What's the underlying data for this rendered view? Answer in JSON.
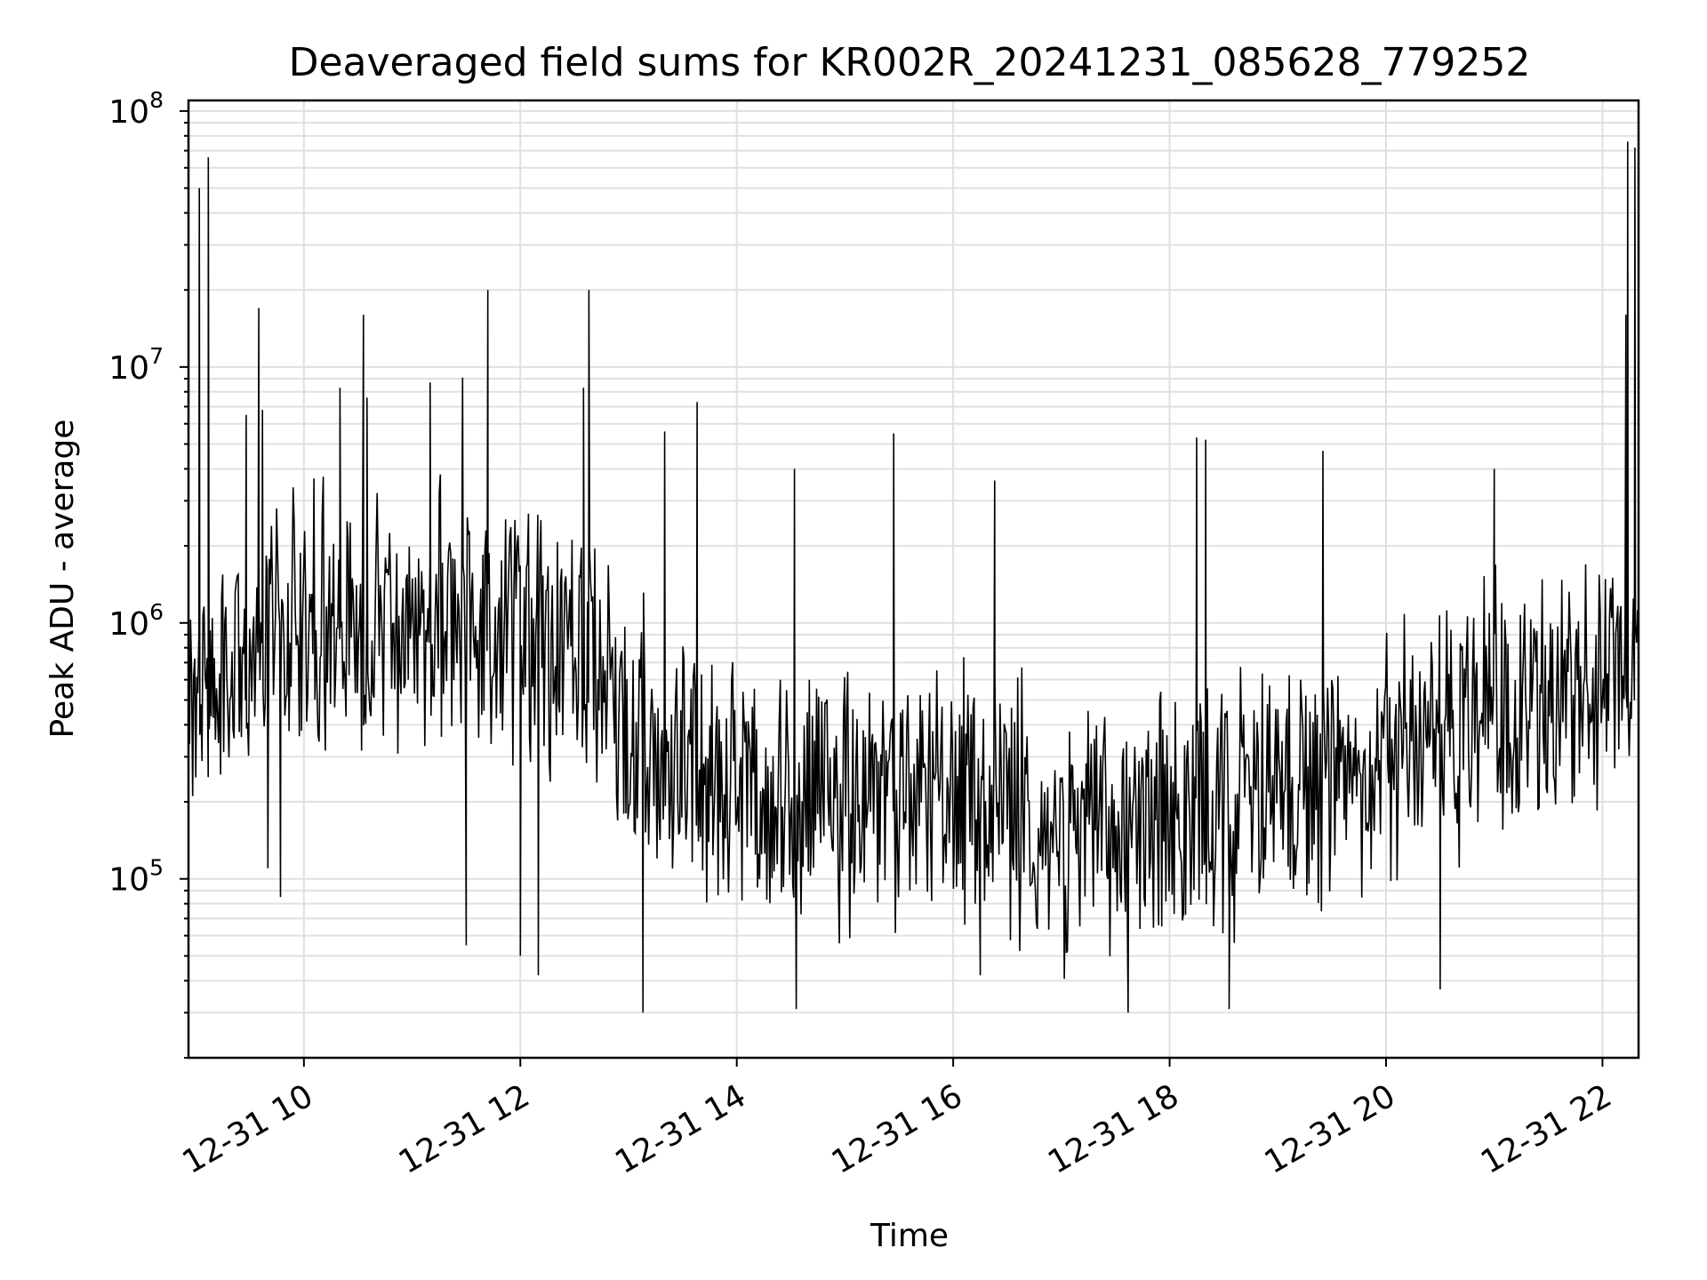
{
  "chart_data": {
    "type": "line",
    "title": "Deaveraged field sums for KR002R_20241231_085628_779252",
    "xlabel": "Time",
    "ylabel": "Peak ADU - average",
    "y_scale": "log",
    "ylim": [
      20000,
      110000000
    ],
    "xlim": [
      "2024-12-31 08:56",
      "2024-12-31 22:20"
    ],
    "x_ticks": [
      {
        "value": "2024-12-31 10:00",
        "label": "12-31 10"
      },
      {
        "value": "2024-12-31 12:00",
        "label": "12-31 12"
      },
      {
        "value": "2024-12-31 14:00",
        "label": "12-31 14"
      },
      {
        "value": "2024-12-31 16:00",
        "label": "12-31 16"
      },
      {
        "value": "2024-12-31 18:00",
        "label": "12-31 18"
      },
      {
        "value": "2024-12-31 20:00",
        "label": "12-31 20"
      },
      {
        "value": "2024-12-31 22:00",
        "label": "12-31 22"
      }
    ],
    "y_ticks": [
      {
        "value": 100000,
        "base": "10",
        "exp": "5"
      },
      {
        "value": 1000000,
        "base": "10",
        "exp": "6"
      },
      {
        "value": 10000000,
        "base": "10",
        "exp": "7"
      },
      {
        "value": 100000000,
        "base": "10",
        "exp": "8"
      }
    ],
    "grid": true,
    "line_color": "#000000",
    "baseline": [
      [
        "2024-12-31 08:56",
        700000
      ],
      [
        "2024-12-31 09:05",
        550000
      ],
      [
        "2024-12-31 10:00",
        1000000
      ],
      [
        "2024-12-31 11:00",
        1000000
      ],
      [
        "2024-12-31 12:00",
        950000
      ],
      [
        "2024-12-31 12:40",
        800000
      ],
      [
        "2024-12-31 13:00",
        400000
      ],
      [
        "2024-12-31 14:00",
        220000
      ],
      [
        "2024-12-31 15:00",
        200000
      ],
      [
        "2024-12-31 16:00",
        250000
      ],
      [
        "2024-12-31 17:00",
        150000
      ],
      [
        "2024-12-31 18:00",
        170000
      ],
      [
        "2024-12-31 19:00",
        220000
      ],
      [
        "2024-12-31 20:00",
        280000
      ],
      [
        "2024-12-31 21:00",
        450000
      ],
      [
        "2024-12-31 22:00",
        600000
      ],
      [
        "2024-12-31 22:20",
        950000
      ]
    ],
    "spikes": [
      [
        "2024-12-31 09:35",
        17000000
      ],
      [
        "2024-12-31 09:37",
        6800000
      ],
      [
        "2024-12-31 09:28",
        6500000
      ],
      [
        "2024-12-31 10:20",
        8300000
      ],
      [
        "2024-12-31 10:33",
        16000000
      ],
      [
        "2024-12-31 10:35",
        7600000
      ],
      [
        "2024-12-31 11:10",
        8700000
      ],
      [
        "2024-12-31 11:28",
        9100000
      ],
      [
        "2024-12-31 11:42",
        20000000
      ],
      [
        "2024-12-31 12:38",
        20000000
      ],
      [
        "2024-12-31 12:35",
        8300000
      ],
      [
        "2024-12-31 13:20",
        5600000
      ],
      [
        "2024-12-31 13:38",
        7300000
      ],
      [
        "2024-12-31 14:32",
        4000000
      ],
      [
        "2024-12-31 15:27",
        5500000
      ],
      [
        "2024-12-31 16:23",
        3600000
      ],
      [
        "2024-12-31 18:15",
        5300000
      ],
      [
        "2024-12-31 18:20",
        5200000
      ],
      [
        "2024-12-31 19:25",
        4700000
      ],
      [
        "2024-12-31 21:00",
        4000000
      ],
      [
        "2024-12-31 22:13",
        16000000
      ]
    ],
    "dips": [
      [
        "2024-12-31 09:40",
        110000
      ],
      [
        "2024-12-31 09:47",
        85000
      ],
      [
        "2024-12-31 11:30",
        55000
      ],
      [
        "2024-12-31 12:00",
        50000
      ],
      [
        "2024-12-31 12:10",
        42000
      ],
      [
        "2024-12-31 13:08",
        30000
      ],
      [
        "2024-12-31 14:33",
        31000
      ],
      [
        "2024-12-31 16:15",
        42000
      ],
      [
        "2024-12-31 17:37",
        30000
      ],
      [
        "2024-12-31 18:33",
        31000
      ],
      [
        "2024-12-31 20:30",
        37000
      ]
    ],
    "plateaus": [
      [
        [
          "2024-12-31 09:01",
          600000
        ],
        [
          "2024-12-31 09:02",
          50000000
        ],
        [
          "2024-12-31 09:07",
          66000000
        ],
        [
          "2024-12-31 09:08",
          500000
        ]
      ],
      [
        [
          "2024-12-31 22:13",
          1000000
        ],
        [
          "2024-12-31 22:14",
          76000000
        ],
        [
          "2024-12-31 22:18",
          72000000
        ],
        [
          "2024-12-31 22:19",
          850000
        ]
      ]
    ],
    "noise_amplitude_decades": 0.5,
    "sample_count": 1400
  }
}
